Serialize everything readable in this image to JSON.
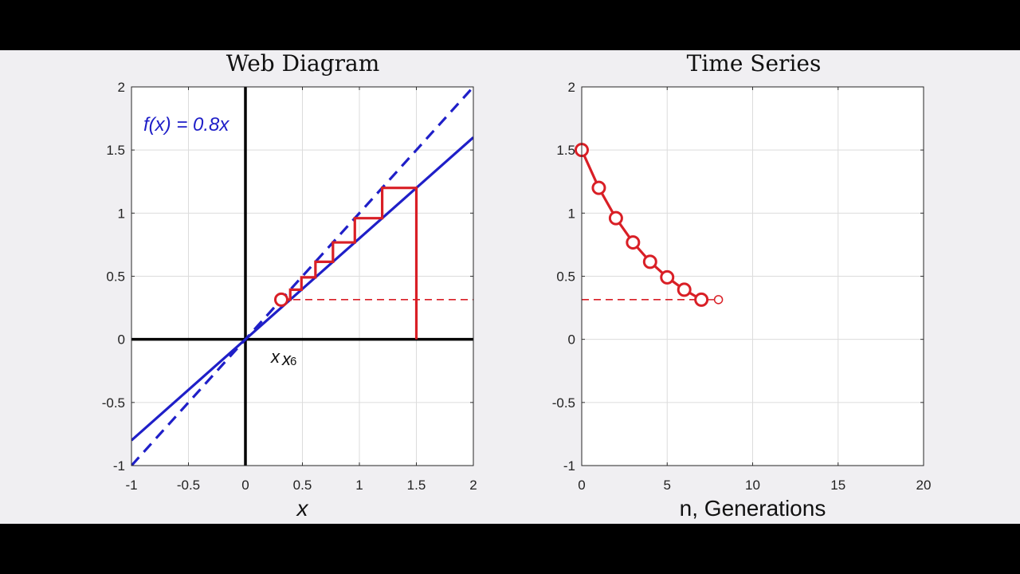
{
  "chart_data": [
    {
      "type": "line",
      "title": "Web Diagram",
      "xlabel": "x",
      "ylabel": "",
      "xlim": [
        -1,
        2
      ],
      "ylim": [
        -1,
        2
      ],
      "xticks": [
        -1,
        -0.5,
        0,
        0.5,
        1,
        1.5,
        2
      ],
      "yticks": [
        -1,
        -0.5,
        0,
        0.5,
        1,
        1.5,
        2
      ],
      "xtick_labels": [
        "-1",
        "-0.5",
        "0",
        "0.5",
        "1",
        "1.5",
        "2"
      ],
      "ytick_labels": [
        "-1",
        "-0.5",
        "0",
        "0.5",
        "1",
        "1.5",
        "2"
      ],
      "grid": true,
      "function_label": "f(x) = 0.8x",
      "x_marker_label": "x",
      "x_marker_subscript": "6",
      "map_line": {
        "slope": 0.8,
        "color": "#1f1fc8"
      },
      "identity_line": {
        "slope": 1,
        "color": "#1f1fc8",
        "style": "dashed"
      },
      "orbit": [
        1.5,
        1.2,
        0.96,
        0.768,
        0.6144,
        0.4915,
        0.3932,
        0.3146
      ],
      "orbit_color": "#d91f26",
      "fixed_level": 0.3146
    },
    {
      "type": "line",
      "title": "Time Series",
      "xlabel": "n, Generations",
      "ylabel": "",
      "xlim": [
        0,
        20
      ],
      "ylim": [
        -1,
        2
      ],
      "xticks": [
        0,
        5,
        10,
        15,
        20
      ],
      "yticks": [
        -1,
        -0.5,
        0,
        0.5,
        1,
        1.5,
        2
      ],
      "xtick_labels": [
        "0",
        "5",
        "10",
        "15",
        "20"
      ],
      "ytick_labels": [
        "-1",
        "-0.5",
        "0",
        "0.5",
        "1",
        "1.5",
        "2"
      ],
      "grid": true,
      "series": [
        {
          "x": [
            0,
            1,
            2,
            3,
            4,
            5,
            6,
            7
          ],
          "y": [
            1.5,
            1.2,
            0.96,
            0.768,
            0.6144,
            0.4915,
            0.3932,
            0.3146
          ],
          "color": "#d91f26"
        }
      ],
      "next_point": {
        "x": 8,
        "y": 0.2517
      },
      "fixed_level": 0.3146
    }
  ]
}
